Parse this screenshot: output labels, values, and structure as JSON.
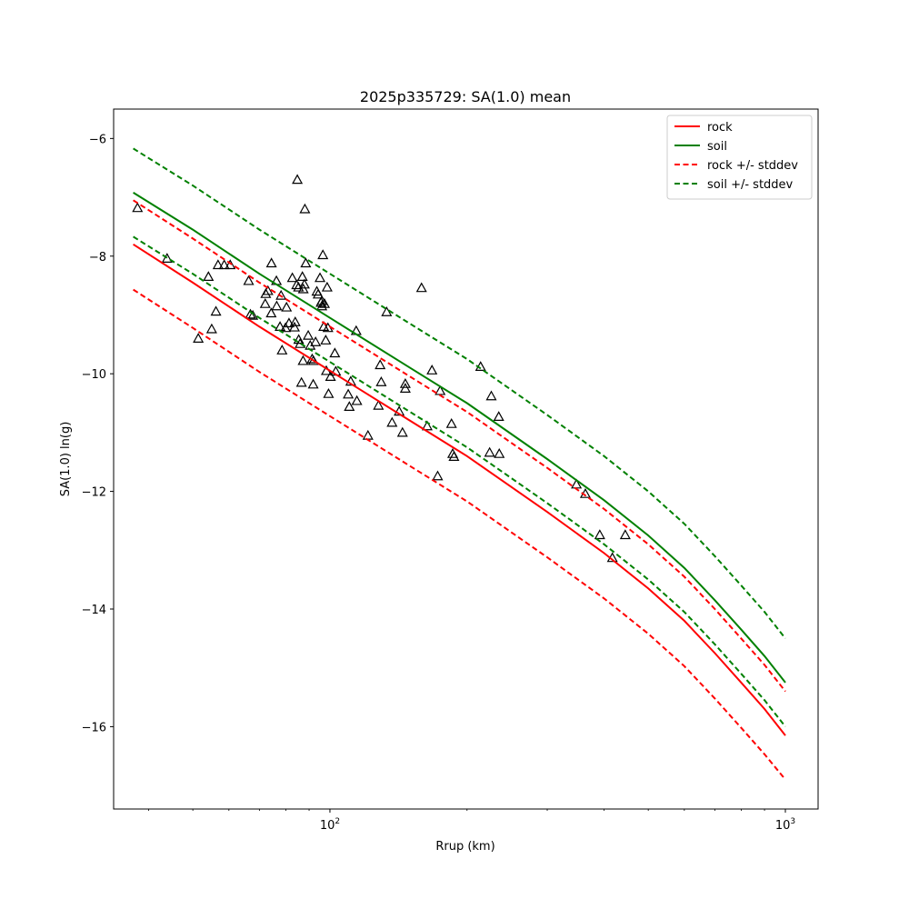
{
  "chart_data": {
    "type": "scatter",
    "title": "2025p335729: SA(1.0) mean",
    "xlabel": "Rrup (km)",
    "ylabel": "SA(1.0) ln(g)",
    "xscale": "log",
    "xlim": [
      33.5,
      1180
    ],
    "ylim": [
      -17.4,
      -5.5
    ],
    "x_ticks": [
      {
        "value": 100,
        "label": "10^2"
      },
      {
        "value": 1000,
        "label": "10^3"
      }
    ],
    "y_ticks": [
      -16,
      -14,
      -12,
      -10,
      -8,
      -6
    ],
    "grid": false,
    "legend_position": "top-right",
    "series": [
      {
        "name": "rock",
        "kind": "line",
        "color": "#ff0000",
        "dash": false,
        "x": [
          37,
          50,
          70,
          100,
          150,
          200,
          300,
          400,
          500,
          600,
          700,
          800,
          900,
          1000
        ],
        "y": [
          -7.8,
          -8.45,
          -9.2,
          -9.95,
          -10.8,
          -11.4,
          -12.35,
          -13.05,
          -13.65,
          -14.2,
          -14.75,
          -15.25,
          -15.7,
          -16.15
        ]
      },
      {
        "name": "soil",
        "kind": "line",
        "color": "#008000",
        "dash": false,
        "x": [
          37,
          50,
          70,
          100,
          150,
          200,
          300,
          400,
          500,
          600,
          700,
          800,
          900,
          1000
        ],
        "y": [
          -6.92,
          -7.55,
          -8.3,
          -9.05,
          -9.9,
          -10.5,
          -11.45,
          -12.15,
          -12.75,
          -13.3,
          -13.85,
          -14.35,
          -14.8,
          -15.25
        ]
      },
      {
        "name": "rock +/- stddev",
        "kind": "line",
        "color": "#ff0000",
        "dash": true,
        "x": [
          37,
          50,
          70,
          100,
          150,
          200,
          300,
          400,
          500,
          600,
          700,
          800,
          900,
          1000
        ],
        "y": [
          -7.05,
          -7.7,
          -8.45,
          -9.2,
          -10.05,
          -10.65,
          -11.6,
          -12.3,
          -12.9,
          -13.45,
          -14.0,
          -14.5,
          -14.95,
          -15.4
        ]
      },
      {
        "name": "",
        "kind": "line",
        "color": "#ff0000",
        "dash": true,
        "x": [
          37,
          50,
          70,
          100,
          150,
          200,
          300,
          400,
          500,
          600,
          700,
          800,
          900,
          1000
        ],
        "y": [
          -8.57,
          -9.22,
          -9.97,
          -10.72,
          -11.57,
          -12.17,
          -13.12,
          -13.82,
          -14.42,
          -14.97,
          -15.52,
          -16.02,
          -16.47,
          -16.9
        ]
      },
      {
        "name": "soil +/- stddev",
        "kind": "line",
        "color": "#008000",
        "dash": true,
        "x": [
          37,
          50,
          70,
          100,
          150,
          200,
          300,
          400,
          500,
          600,
          700,
          800,
          900,
          1000
        ],
        "y": [
          -6.17,
          -6.8,
          -7.55,
          -8.3,
          -9.15,
          -9.75,
          -10.7,
          -11.4,
          -12.0,
          -12.55,
          -13.1,
          -13.6,
          -14.05,
          -14.5
        ]
      },
      {
        "name": "",
        "kind": "line",
        "color": "#008000",
        "dash": true,
        "x": [
          37,
          50,
          70,
          100,
          150,
          200,
          300,
          400,
          500,
          600,
          700,
          800,
          900,
          1000
        ],
        "y": [
          -7.67,
          -8.3,
          -9.05,
          -9.8,
          -10.65,
          -11.25,
          -12.2,
          -12.9,
          -13.5,
          -14.05,
          -14.6,
          -15.1,
          -15.55,
          -16.0
        ]
      }
    ],
    "observations": {
      "name": "",
      "marker": "triangle",
      "color": "#000000",
      "x": [
        37.8,
        43.9,
        51.4,
        54.1,
        55.0,
        56.8,
        56.2,
        58.6,
        60.4,
        66.3,
        66.9,
        67.7,
        72.3,
        72.1,
        73.1,
        74.3,
        74.4,
        76.3,
        76.4,
        77.7,
        78.1,
        78.5,
        79.9,
        80.3,
        81.3,
        82.7,
        83.6,
        83.9,
        84.5,
        85.4,
        85.3,
        86.0,
        86.6,
        87.0,
        87.3,
        87.4,
        87.9,
        88.5,
        88.1,
        89.6,
        90.5,
        91.4,
        91.9,
        92.0,
        93.0,
        93.6,
        94.2,
        95.1,
        95.6,
        96.0,
        96.0,
        96.5,
        96.9,
        97.3,
        97.9,
        98.2,
        98.6,
        99.0,
        99.3,
        100.3,
        102.5,
        103.0,
        109.7,
        110.3,
        111.1,
        114.2,
        114.6,
        121.2,
        127.8,
        128.9,
        129.6,
        133.2,
        136.9,
        141.9,
        144.3,
        146.4,
        146.4,
        158.9,
        163.5,
        167.5,
        172.4,
        174.6,
        184.9,
        186.0,
        187.2,
        214.2,
        224.2,
        226.1,
        234.8,
        235.4,
        347.7,
        363.8,
        391.3,
        417.0,
        445.1
      ],
      "y": [
        -7.18,
        -8.04,
        -9.4,
        -8.35,
        -9.24,
        -8.15,
        -8.94,
        -8.15,
        -8.15,
        -8.42,
        -8.99,
        -9.01,
        -8.64,
        -8.81,
        -8.59,
        -8.97,
        -8.12,
        -8.42,
        -8.85,
        -9.2,
        -8.67,
        -9.6,
        -9.22,
        -8.87,
        -9.14,
        -8.37,
        -9.21,
        -9.12,
        -8.49,
        -9.42,
        -8.53,
        -9.49,
        -10.15,
        -8.35,
        -9.78,
        -8.56,
        -8.48,
        -8.12,
        -7.2,
        -9.35,
        -9.52,
        -9.75,
        -10.18,
        -9.78,
        -9.46,
        -8.6,
        -8.65,
        -8.37,
        -8.79,
        -8.76,
        -8.85,
        -7.98,
        -9.2,
        -8.81,
        -9.43,
        -9.95,
        -8.53,
        -9.22,
        -10.34,
        -10.05,
        -9.65,
        -9.96,
        -10.35,
        -10.56,
        -10.13,
        -9.27,
        -10.46,
        -11.05,
        -10.54,
        -9.85,
        -10.14,
        -8.95,
        -10.83,
        -10.64,
        -11.0,
        -10.25,
        -10.17,
        -8.54,
        -10.89,
        -9.94,
        -11.74,
        -10.29,
        -10.85,
        -11.36,
        -11.41,
        -9.88,
        -11.34,
        -10.38,
        -10.73,
        -11.36,
        -11.88,
        -12.04,
        -12.74,
        -13.13,
        -12.74
      ]
    },
    "outlier_points": {
      "x": [
        84.8
      ],
      "y": [
        -6.7
      ]
    }
  }
}
